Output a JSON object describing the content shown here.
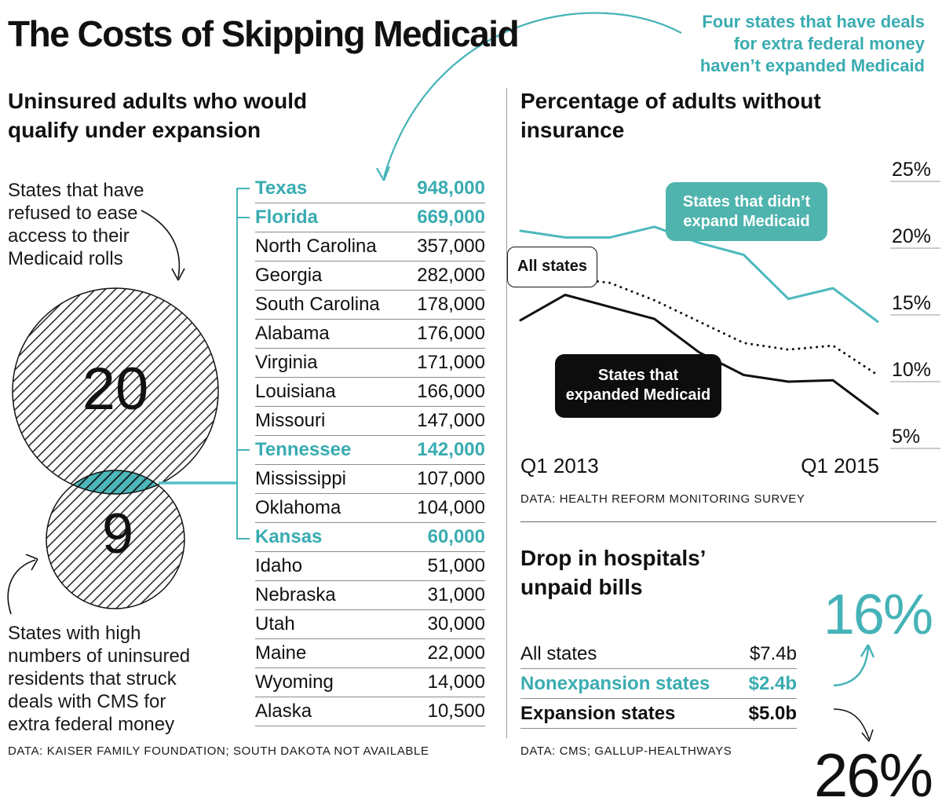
{
  "page_title": "The Costs of Skipping Medicaid",
  "colors": {
    "accent_text": "#39ACB1",
    "line_teal": "#4DB9BD",
    "label_box_teal": "#4FB4AD",
    "label_box_black": "#0d0d0d",
    "venn_lens_teal": "#4DB6BA"
  },
  "annotations": {
    "four_states": "Four states that have deals for extra federal money haven’t expanded Medicaid",
    "refused": "States that have refused to ease access to their Medicaid rolls",
    "deals": "States with high numbers of uninsured residents that struck deals with CMS for extra federal money"
  },
  "chart_data": [
    {
      "id": "uninsured-table",
      "type": "table",
      "title": "Uninsured adults who would qualify under expansion",
      "source": "DATA: KAISER FAMILY FOUNDATION; SOUTH DAKOTA NOT AVAILABLE",
      "highlight_meaning": "Teal rows are the four states with federal-money deals that haven’t expanded Medicaid",
      "rows": [
        {
          "state": "Texas",
          "value": "948,000",
          "cls": "hl"
        },
        {
          "state": "Florida",
          "value": "669,000",
          "cls": "hl"
        },
        {
          "state": "North Carolina",
          "value": "357,000",
          "cls": ""
        },
        {
          "state": "Georgia",
          "value": "282,000",
          "cls": ""
        },
        {
          "state": "South Carolina",
          "value": "178,000",
          "cls": ""
        },
        {
          "state": "Alabama",
          "value": "176,000",
          "cls": ""
        },
        {
          "state": "Virginia",
          "value": "171,000",
          "cls": ""
        },
        {
          "state": "Louisiana",
          "value": "166,000",
          "cls": ""
        },
        {
          "state": "Missouri",
          "value": "147,000",
          "cls": ""
        },
        {
          "state": "Tennessee",
          "value": "142,000",
          "cls": "hl"
        },
        {
          "state": "Mississippi",
          "value": "107,000",
          "cls": ""
        },
        {
          "state": "Oklahoma",
          "value": "104,000",
          "cls": ""
        },
        {
          "state": "Kansas",
          "value": "60,000",
          "cls": "hl"
        },
        {
          "state": "Idaho",
          "value": "51,000",
          "cls": ""
        },
        {
          "state": "Nebraska",
          "value": "31,000",
          "cls": ""
        },
        {
          "state": "Utah",
          "value": "30,000",
          "cls": ""
        },
        {
          "state": "Maine",
          "value": "22,000",
          "cls": ""
        },
        {
          "state": "Wyoming",
          "value": "14,000",
          "cls": ""
        },
        {
          "state": "Alaska",
          "value": "10,500",
          "cls": ""
        }
      ]
    },
    {
      "id": "insurance-line",
      "type": "line",
      "title": "Percentage of adults without insurance",
      "source": "DATA: HEALTH REFORM MONITORING SURVEY",
      "x": [
        "Q1 2013",
        "Q2 2013",
        "Q3 2013",
        "Q4 2013",
        "Q1 2014",
        "Q2 2014",
        "Q3 2014",
        "Q4 2014",
        "Q1 2015"
      ],
      "xticks_shown": [
        "Q1 2013",
        "Q1 2015"
      ],
      "yticks": [
        25,
        20,
        15,
        10,
        5
      ],
      "ylim": [
        4,
        26
      ],
      "grid": "right-side tick rules only",
      "legend_position": "inline label boxes on lines",
      "series": [
        {
          "name": "States that didn’t expand Medicaid",
          "style": "solid",
          "color": "#4DB9BD",
          "values": [
            21.3,
            20.8,
            20.8,
            21.6,
            20.4,
            19.5,
            16.2,
            17.0,
            14.5
          ]
        },
        {
          "name": "All states",
          "style": "dotted",
          "color": "#111111",
          "values": [
            17.9,
            17.8,
            17.4,
            16.1,
            14.5,
            12.9,
            12.4,
            12.7,
            10.5
          ]
        },
        {
          "name": "States that expanded Medicaid",
          "style": "solid",
          "color": "#111111",
          "values": [
            14.6,
            16.5,
            15.6,
            14.7,
            12.2,
            10.5,
            10.0,
            10.1,
            7.6
          ]
        }
      ]
    },
    {
      "id": "refusal-venn",
      "type": "venn",
      "circles": [
        {
          "value": "20",
          "label": "States that have refused to ease access to their Medicaid rolls"
        },
        {
          "value": "9",
          "label": "States with high numbers of uninsured residents that struck deals with CMS for extra federal money"
        }
      ]
    },
    {
      "id": "hospital-bills",
      "type": "table",
      "title": "Drop in hospitals’ unpaid bills",
      "source": "DATA: CMS; GALLUP-HEALTHWAYS",
      "rows": [
        {
          "label": "All states",
          "value": "$7.4b",
          "cls": "plain"
        },
        {
          "label": "Nonexpansion states",
          "value": "$2.4b",
          "cls": "teal"
        },
        {
          "label": "Expansion states",
          "value": "$5.0b",
          "cls": "boldrow"
        }
      ],
      "callouts": [
        {
          "value": "16%",
          "refers_to": "Nonexpansion states"
        },
        {
          "value": "26%",
          "refers_to": "Expansion states"
        }
      ]
    }
  ]
}
